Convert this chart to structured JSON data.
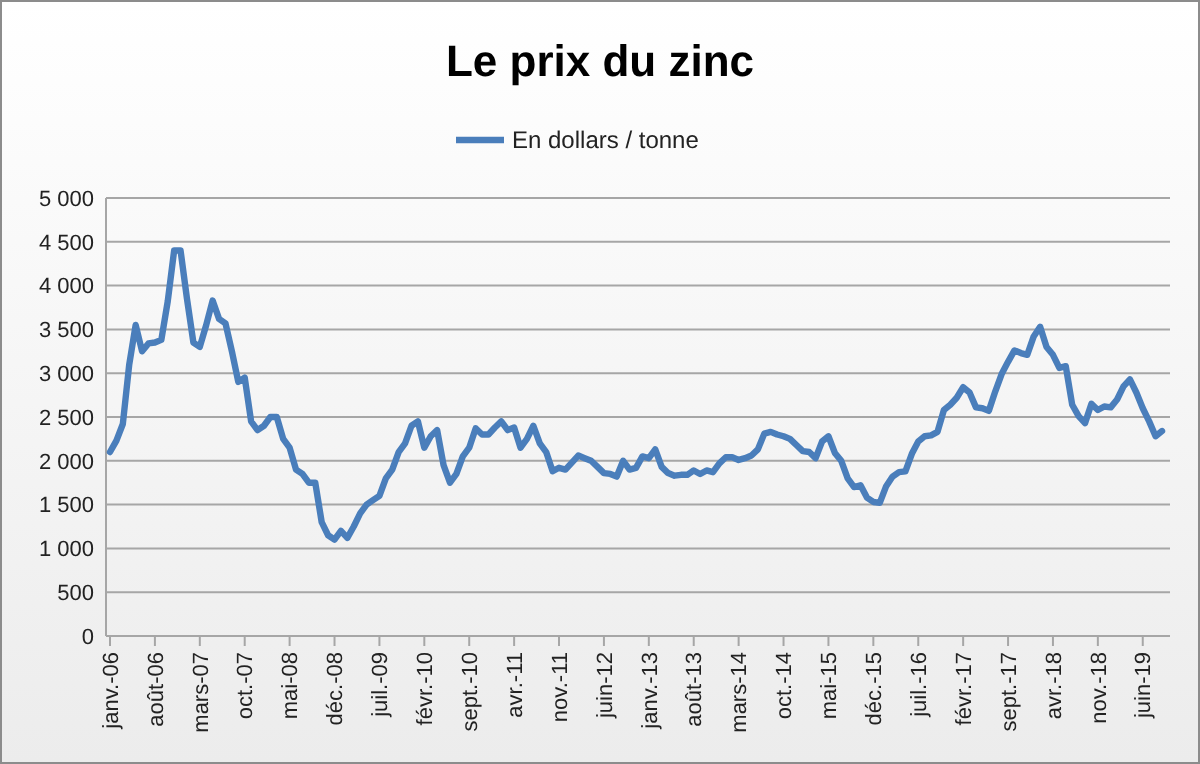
{
  "chart_data": {
    "type": "line",
    "title": "Le prix du zinc",
    "legend": "top",
    "grid": "y",
    "categories": [
      "janv.-06",
      null,
      null,
      null,
      null,
      null,
      null,
      "août-06",
      null,
      null,
      null,
      null,
      null,
      null,
      "mars-07",
      null,
      null,
      null,
      null,
      null,
      null,
      "oct.-07",
      null,
      null,
      null,
      null,
      null,
      null,
      "mai-08",
      null,
      null,
      null,
      null,
      null,
      null,
      "déc.-08",
      null,
      null,
      null,
      null,
      null,
      null,
      "juil.-09",
      null,
      null,
      null,
      null,
      null,
      null,
      "févr.-10",
      null,
      null,
      null,
      null,
      null,
      null,
      "sept.-10",
      null,
      null,
      null,
      null,
      null,
      null,
      "avr.-11",
      null,
      null,
      null,
      null,
      null,
      null,
      "nov.-11",
      null,
      null,
      null,
      null,
      null,
      null,
      "juin-12",
      null,
      null,
      null,
      null,
      null,
      null,
      "janv.-13",
      null,
      null,
      null,
      null,
      null,
      null,
      "août-13",
      null,
      null,
      null,
      null,
      null,
      null,
      "mars-14",
      null,
      null,
      null,
      null,
      null,
      null,
      "oct.-14",
      null,
      null,
      null,
      null,
      null,
      null,
      "mai-15",
      null,
      null,
      null,
      null,
      null,
      null,
      "déc.-15",
      null,
      null,
      null,
      null,
      null,
      null,
      "juil.-16",
      null,
      null,
      null,
      null,
      null,
      null,
      "févr.-17",
      null,
      null,
      null,
      null,
      null,
      null,
      "sept.-17",
      null,
      null,
      null,
      null,
      null,
      null,
      "avr.-18",
      null,
      null,
      null,
      null,
      null,
      null,
      "nov.-18",
      null,
      null,
      null,
      null,
      null,
      null,
      "juin-19",
      null,
      null,
      null
    ],
    "ylim": [
      0,
      5000
    ],
    "yticks": [
      0,
      500,
      {
        "value": 1000,
        "label": "1 000"
      },
      {
        "value": 1500,
        "label": "1 500"
      },
      {
        "value": 2000,
        "label": "2 000"
      },
      {
        "value": 2500,
        "label": "2 500"
      },
      {
        "value": 3000,
        "label": "3 000"
      },
      {
        "value": 3500,
        "label": "3 500"
      },
      {
        "value": 4000,
        "label": "4 000"
      },
      {
        "value": 4500,
        "label": "4 500"
      },
      {
        "value": 5000,
        "label": "5 000"
      }
    ],
    "series": [
      {
        "name": "En dollars / tonne",
        "color": "#4a7ebb",
        "values": [
          2100,
          2230,
          2420,
          3100,
          3550,
          3250,
          3340,
          3350,
          3380,
          3820,
          4400,
          4400,
          3850,
          3350,
          3300,
          3550,
          3830,
          3620,
          3570,
          3250,
          2900,
          2950,
          2450,
          2350,
          2400,
          2500,
          2500,
          2250,
          2150,
          1900,
          1850,
          1750,
          1750,
          1300,
          1150,
          1100,
          1200,
          1120,
          1250,
          1400,
          1500,
          1550,
          1600,
          1800,
          1900,
          2100,
          2200,
          2400,
          2450,
          2150,
          2280,
          2350,
          1950,
          1750,
          1850,
          2050,
          2150,
          2370,
          2300,
          2300,
          2380,
          2450,
          2350,
          2380,
          2150,
          2250,
          2400,
          2200,
          2100,
          1880,
          1920,
          1900,
          1980,
          2060,
          2030,
          2000,
          1930,
          1860,
          1850,
          1820,
          2000,
          1900,
          1920,
          2050,
          2030,
          2130,
          1930,
          1860,
          1830,
          1840,
          1840,
          1890,
          1850,
          1890,
          1870,
          1970,
          2040,
          2040,
          2010,
          2030,
          2060,
          2130,
          2310,
          2330,
          2300,
          2280,
          2250,
          2180,
          2110,
          2100,
          2030,
          2220,
          2280,
          2090,
          2000,
          1800,
          1700,
          1720,
          1580,
          1530,
          1520,
          1710,
          1820,
          1870,
          1880,
          2080,
          2220,
          2280,
          2290,
          2330,
          2580,
          2640,
          2720,
          2840,
          2780,
          2610,
          2600,
          2570,
          2790,
          2990,
          3130,
          3260,
          3230,
          3210,
          3420,
          3530,
          3300,
          3210,
          3060,
          3080,
          2640,
          2510,
          2430,
          2650,
          2580,
          2620,
          2610,
          2700,
          2850,
          2930,
          2780,
          2600,
          2450,
          2280,
          2340
        ]
      }
    ]
  }
}
